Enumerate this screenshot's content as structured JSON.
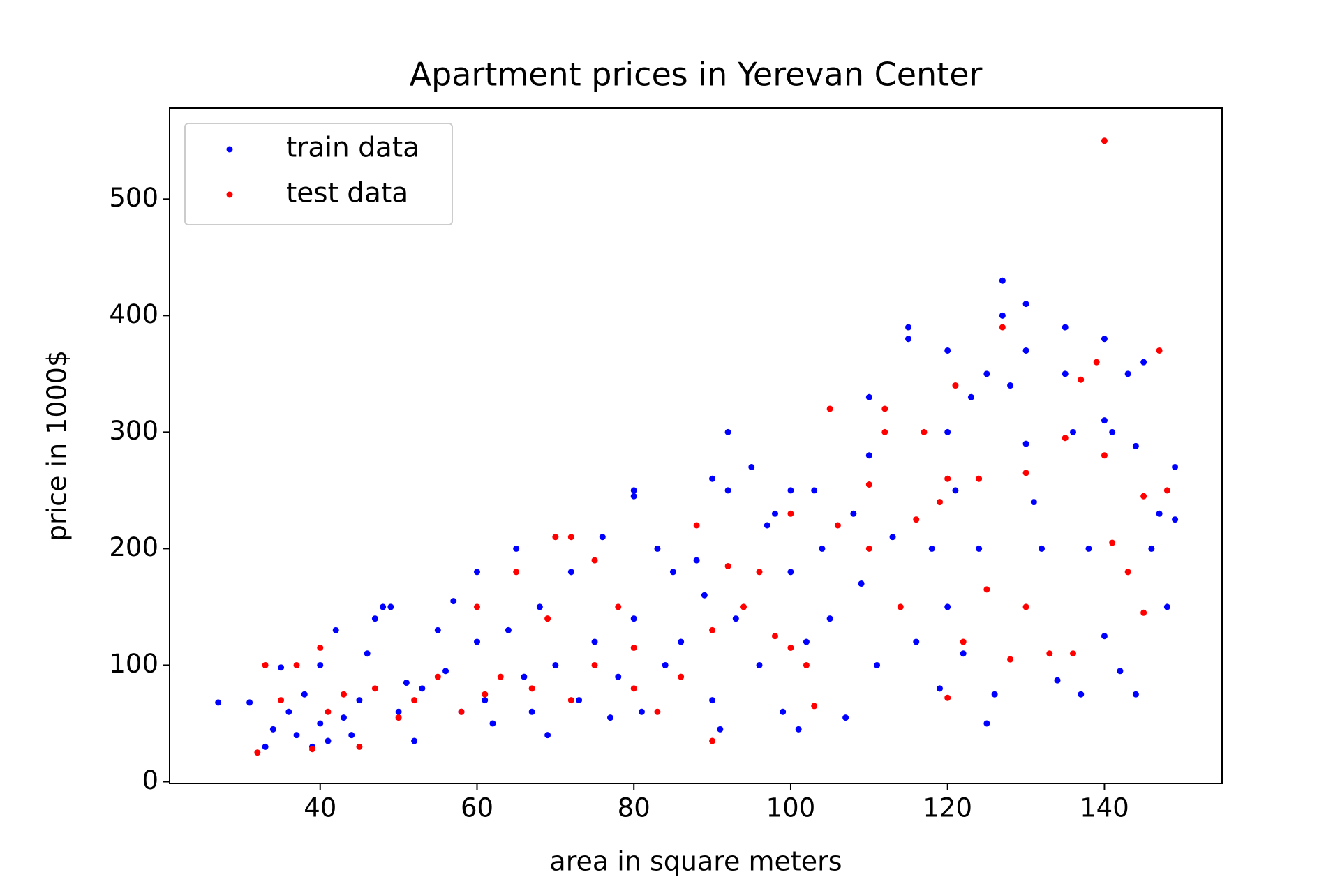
{
  "chart_data": {
    "type": "scatter",
    "title": "Apartment prices in Yerevan Center",
    "x_label": "area in square meters",
    "y_label": "price in 1000$",
    "xlim": [
      20.8,
      155
    ],
    "ylim": [
      -1.5,
      578
    ],
    "xticks": [
      40,
      60,
      80,
      100,
      120,
      140
    ],
    "yticks": [
      0,
      100,
      200,
      300,
      400,
      500
    ],
    "legend": "upper left",
    "series": [
      {
        "name": "train data",
        "color": "#0000ff",
        "x": [
          27,
          31,
          33,
          34,
          35,
          36,
          37,
          38,
          39,
          40,
          40,
          41,
          42,
          43,
          44,
          45,
          46,
          47,
          48,
          49,
          50,
          51,
          52,
          53,
          55,
          56,
          57,
          58,
          60,
          60,
          61,
          62,
          64,
          65,
          66,
          67,
          68,
          69,
          70,
          72,
          73,
          75,
          76,
          77,
          78,
          80,
          80,
          80,
          81,
          83,
          84,
          85,
          86,
          88,
          89,
          90,
          90,
          91,
          92,
          92,
          93,
          95,
          96,
          97,
          98,
          99,
          100,
          100,
          101,
          102,
          103,
          104,
          105,
          107,
          108,
          109,
          110,
          110,
          111,
          113,
          115,
          115,
          116,
          118,
          119,
          120,
          120,
          120,
          121,
          122,
          123,
          124,
          125,
          125,
          126,
          127,
          127,
          128,
          130,
          130,
          130,
          131,
          132,
          134,
          135,
          135,
          136,
          137,
          138,
          140,
          140,
          140,
          141,
          142,
          143,
          144,
          144,
          145,
          146,
          147,
          148,
          149,
          149
        ],
        "y": [
          68,
          68,
          30,
          45,
          98,
          60,
          40,
          75,
          30,
          50,
          100,
          35,
          130,
          55,
          40,
          70,
          110,
          140,
          150,
          150,
          60,
          85,
          35,
          80,
          130,
          95,
          155,
          60,
          180,
          120,
          70,
          50,
          130,
          200,
          90,
          60,
          150,
          40,
          100,
          180,
          70,
          120,
          210,
          55,
          90,
          250,
          245,
          140,
          60,
          200,
          100,
          180,
          120,
          190,
          160,
          260,
          70,
          45,
          300,
          250,
          140,
          270,
          100,
          220,
          230,
          60,
          250,
          180,
          45,
          120,
          250,
          200,
          140,
          55,
          230,
          170,
          330,
          280,
          100,
          210,
          390,
          380,
          120,
          200,
          80,
          300,
          370,
          150,
          250,
          110,
          330,
          200,
          350,
          50,
          75,
          430,
          400,
          340,
          410,
          370,
          290,
          240,
          200,
          87,
          390,
          350,
          300,
          75,
          200,
          380,
          310,
          125,
          300,
          95,
          350,
          75,
          288,
          360,
          200,
          230,
          150,
          270,
          225
        ]
      },
      {
        "name": "test data",
        "color": "#ff0000",
        "x": [
          32,
          33,
          35,
          37,
          39,
          40,
          41,
          43,
          45,
          47,
          50,
          52,
          55,
          58,
          60,
          61,
          63,
          65,
          67,
          69,
          70,
          72,
          72,
          75,
          75,
          78,
          80,
          80,
          83,
          86,
          88,
          90,
          90,
          92,
          94,
          96,
          98,
          100,
          100,
          102,
          103,
          105,
          106,
          110,
          110,
          112,
          112,
          114,
          116,
          117,
          119,
          120,
          120,
          121,
          122,
          124,
          125,
          127,
          128,
          130,
          130,
          133,
          135,
          136,
          137,
          139,
          140,
          140,
          141,
          143,
          145,
          145,
          147,
          148
        ],
        "y": [
          25,
          100,
          70,
          100,
          28,
          115,
          60,
          75,
          30,
          80,
          55,
          70,
          90,
          60,
          150,
          75,
          90,
          180,
          80,
          140,
          210,
          210,
          70,
          190,
          100,
          150,
          80,
          115,
          60,
          90,
          220,
          35,
          130,
          185,
          150,
          180,
          125,
          230,
          115,
          100,
          65,
          320,
          220,
          255,
          200,
          320,
          300,
          150,
          225,
          300,
          240,
          72,
          260,
          340,
          120,
          260,
          165,
          390,
          105,
          265,
          150,
          110,
          295,
          110,
          345,
          360,
          550,
          280,
          205,
          180,
          145,
          245,
          370,
          250
        ]
      }
    ]
  }
}
